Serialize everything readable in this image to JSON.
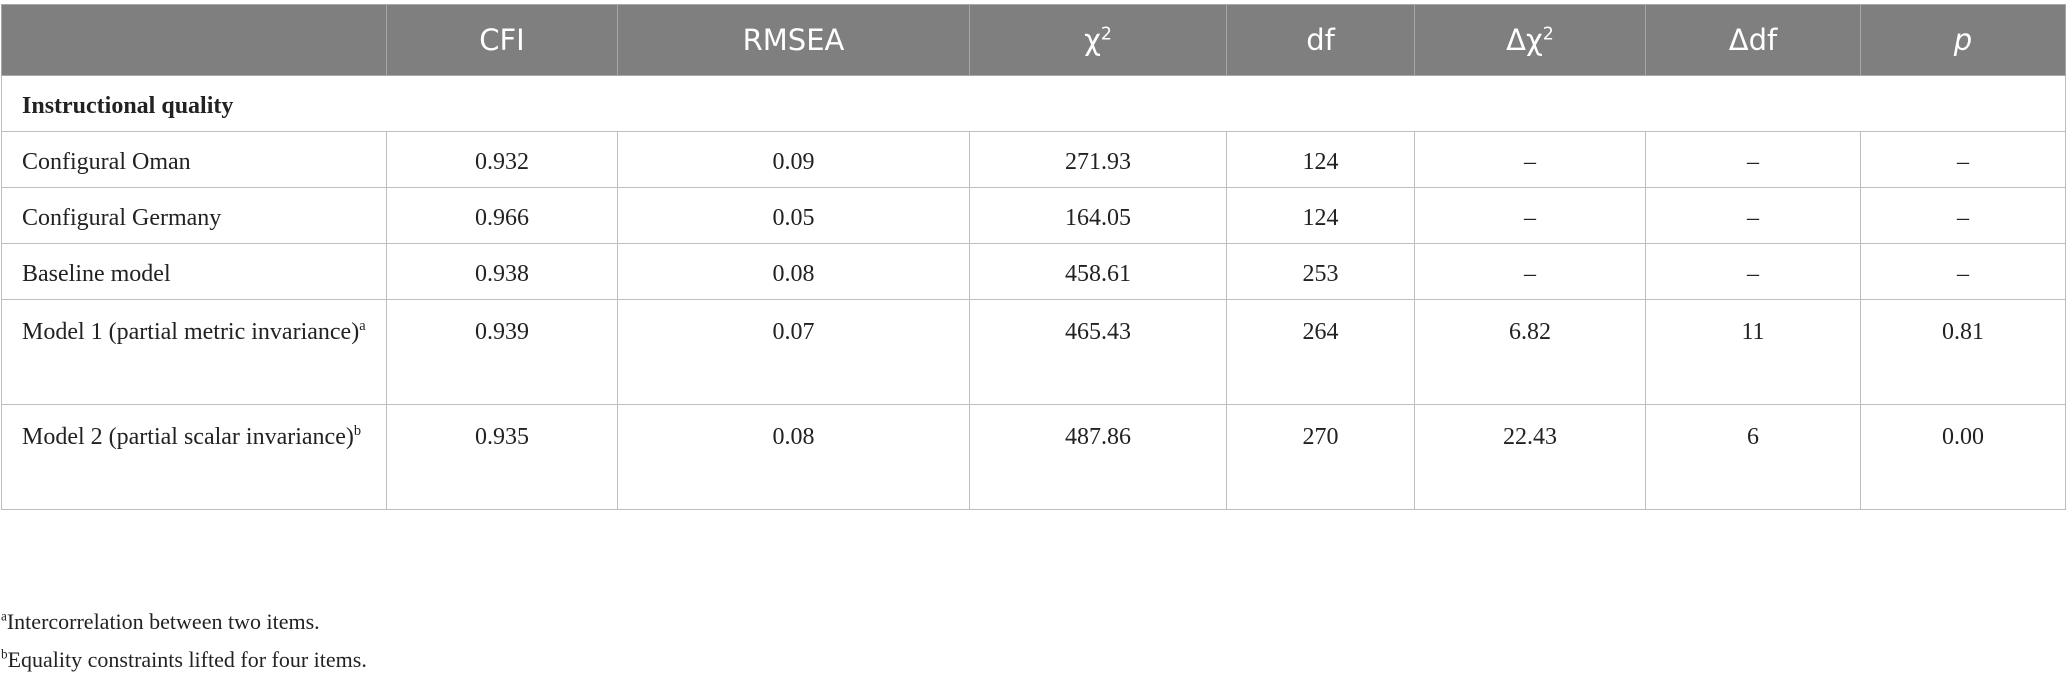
{
  "table": {
    "columns": [
      {
        "text": "CFI"
      },
      {
        "text": "RMSEA"
      },
      {
        "text": "χ",
        "sup": "2"
      },
      {
        "text": "df"
      },
      {
        "text": "Δχ",
        "sup": "2"
      },
      {
        "text": "Δdf"
      },
      {
        "text": "p",
        "italic": true
      }
    ],
    "section": "Instructional quality",
    "rows": [
      {
        "label": "Configural Oman",
        "cells": [
          "0.932",
          "0.09",
          "271.93",
          "124",
          "–",
          "–",
          "–"
        ]
      },
      {
        "label": "Configural Germany",
        "cells": [
          "0.966",
          "0.05",
          "164.05",
          "124",
          "–",
          "–",
          "–"
        ]
      },
      {
        "label": "Baseline model",
        "cells": [
          "0.938",
          "0.08",
          "458.61",
          "253",
          "–",
          "–",
          "–"
        ]
      },
      {
        "label": "Model 1 (partial metric invariance)",
        "sup": "a",
        "cells": [
          "0.939",
          "0.07",
          "465.43",
          "264",
          "6.82",
          "11",
          "0.81"
        ]
      },
      {
        "label": "Model 2 (partial scalar invariance)",
        "sup": "b",
        "cells": [
          "0.935",
          "0.08",
          "487.86",
          "270",
          "22.43",
          "6",
          "0.00"
        ]
      }
    ]
  },
  "footnotes": [
    {
      "mark": "a",
      "text": "Intercorrelation between two items."
    },
    {
      "mark": "b",
      "text": "Equality constraints lifted for four items."
    }
  ]
}
